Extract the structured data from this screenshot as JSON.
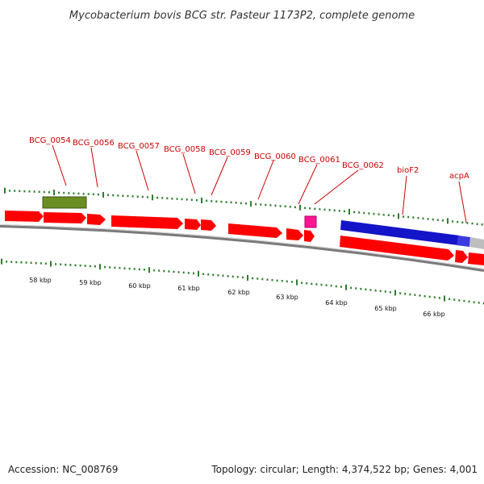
{
  "title": "Mycobacterium bovis BCG str. Pasteur 1173P2, complete genome",
  "footer": {
    "accession": "Accession: NC_008769",
    "summary": "Topology: circular; Length: 4,374,522 bp; Genes: 4,001"
  },
  "colors": {
    "cds": "#ff0000",
    "cds_dark": "#b40000",
    "misc_feature": "#6b8e23",
    "rna": "#ff1493",
    "repeat_region": "#1414c8",
    "other_feature": "#bebebe",
    "ticks": "#2e7d2e",
    "backbone": "#7a7a7a",
    "label": "#cc0000"
  },
  "gene_labels": [
    "BCG_0054",
    "BCG_0056",
    "BCG_0057",
    "BCG_0058",
    "BCG_0059",
    "BCG_0060",
    "BCG_0061",
    "BCG_0062",
    "bioF2",
    "acpA"
  ],
  "kbp_labels": [
    "58 kbp",
    "59 kbp",
    "60 kbp",
    "61 kbp",
    "62 kbp",
    "63 kbp",
    "64 kbp",
    "65 kbp",
    "66 kbp"
  ]
}
